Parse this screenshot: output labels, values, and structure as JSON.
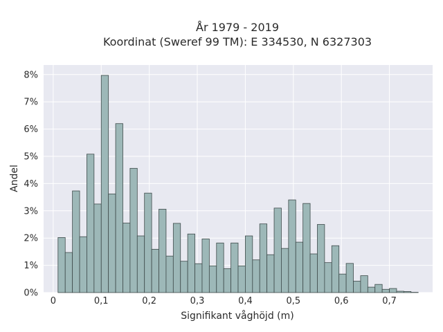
{
  "chart_data": {
    "type": "bar",
    "title_line1": "År 1979 - 2019",
    "title_line2": "Koordinat (Sweref 99 TM): E 334530, N 6327303",
    "xlabel": "Signifikant våghöjd (m)",
    "ylabel": "Andel",
    "xlim": [
      -0.02,
      0.79
    ],
    "ylim": [
      0,
      0.0835
    ],
    "bin_width": 0.015,
    "bin_start": 0.01,
    "grid": true,
    "x_ticks": [
      {
        "value": 0.0,
        "label": "0"
      },
      {
        "value": 0.1,
        "label": "0,1"
      },
      {
        "value": 0.2,
        "label": "0,2"
      },
      {
        "value": 0.3,
        "label": "0,3"
      },
      {
        "value": 0.4,
        "label": "0,4"
      },
      {
        "value": 0.5,
        "label": "0,5"
      },
      {
        "value": 0.6,
        "label": "0,6"
      },
      {
        "value": 0.7,
        "label": "0,7"
      }
    ],
    "y_ticks": [
      {
        "value": 0.0,
        "label": "0%"
      },
      {
        "value": 0.01,
        "label": "1%"
      },
      {
        "value": 0.02,
        "label": "2%"
      },
      {
        "value": 0.03,
        "label": "3%"
      },
      {
        "value": 0.04,
        "label": "4%"
      },
      {
        "value": 0.05,
        "label": "5%"
      },
      {
        "value": 0.06,
        "label": "6%"
      },
      {
        "value": 0.07,
        "label": "7%"
      },
      {
        "value": 0.08,
        "label": "8%"
      }
    ],
    "values": [
      0.0202,
      0.0147,
      0.0373,
      0.0205,
      0.0508,
      0.0325,
      0.0797,
      0.0362,
      0.062,
      0.0255,
      0.0456,
      0.0208,
      0.0365,
      0.0159,
      0.0306,
      0.0134,
      0.0254,
      0.0115,
      0.0215,
      0.0106,
      0.0197,
      0.0098,
      0.0182,
      0.0088,
      0.0182,
      0.0098,
      0.0208,
      0.012,
      0.0252,
      0.0139,
      0.031,
      0.0162,
      0.034,
      0.0185,
      0.0327,
      0.0142,
      0.025,
      0.011,
      0.0172,
      0.0068,
      0.0107,
      0.0042,
      0.0062,
      0.002,
      0.003,
      0.0012,
      0.0015,
      0.0005,
      0.0004,
      0.0001
    ],
    "colors": {
      "plot_bg": "#e8e9f1",
      "grid": "#ffffff",
      "bar_fill": "#9db8b8",
      "bar_stroke": "#3e4a4a"
    }
  }
}
